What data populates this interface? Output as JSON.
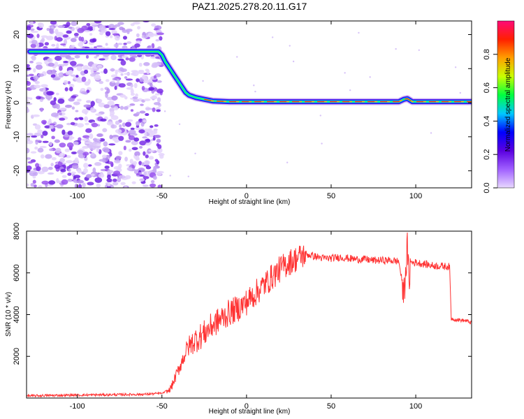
{
  "title": "PAZ1.2025.278.20.11.G17",
  "colors": {
    "signal": "#ff3333",
    "speckle": "#9a55ee",
    "axis": "#000000"
  },
  "chart_data": [
    {
      "type": "heatmap",
      "title": "PAZ1.2025.278.20.11.G17",
      "xlabel": "Height of straight line (km)",
      "ylabel": "Frequency (Hz)",
      "xlim": [
        -130,
        133
      ],
      "ylim": [
        -25,
        24
      ],
      "x_ticks": [
        -100,
        -50,
        0,
        50,
        100
      ],
      "y_ticks": [
        -20,
        -10,
        0,
        10,
        20
      ],
      "ridge_line": {
        "x": [
          -128,
          -120,
          -110,
          -100,
          -90,
          -80,
          -70,
          -60,
          -52,
          -50,
          -48,
          -46,
          -44,
          -42,
          -40,
          -38,
          -36,
          -34,
          -30,
          -25,
          -20,
          -10,
          0,
          20,
          40,
          60,
          80,
          90,
          93,
          95,
          98,
          110,
          133
        ],
        "y": [
          15,
          15,
          15,
          15,
          15,
          15,
          15,
          15,
          15,
          14,
          12,
          10.5,
          9,
          7.5,
          6,
          4.5,
          3,
          2.2,
          1.5,
          1.0,
          0.5,
          0.3,
          0.3,
          0.3,
          0.3,
          0.3,
          0.3,
          0.3,
          1.0,
          1.2,
          0.3,
          0.3,
          0.3
        ]
      },
      "colorbar": {
        "label": "Normalized spectral amplitude",
        "ticks": [
          "0.0",
          "0.2",
          "0.4",
          "0.6",
          "0.8"
        ],
        "tick_values": [
          0.0,
          0.2,
          0.4,
          0.6,
          0.8
        ],
        "range": [
          0,
          1
        ],
        "colormap": [
          "#e8d8ff",
          "#a060ff",
          "#5a00e0",
          "#0000ff",
          "#00c8ff",
          "#00ff40",
          "#c8ff00",
          "#ffa000",
          "#ff2000",
          "#ff0a78"
        ]
      },
      "grid": false
    },
    {
      "type": "line",
      "xlabel": "Height of straight line (km)",
      "ylabel": "SNR (10 * v/v)",
      "xlim": [
        -130,
        133
      ],
      "ylim": [
        0,
        8000
      ],
      "x_ticks": [
        -100,
        -50,
        0,
        50,
        100
      ],
      "y_ticks": [
        2000,
        4000,
        6000,
        8000
      ],
      "series": [
        {
          "x": [
            -130,
            -120,
            -110,
            -100,
            -90,
            -80,
            -70,
            -60,
            -50,
            -46,
            -44,
            -42,
            -40,
            -38,
            -36,
            -34,
            -30,
            -25,
            -20,
            -15,
            -10,
            -5,
            0,
            5,
            10,
            15,
            20,
            25,
            30,
            35,
            40,
            45,
            50,
            55,
            60,
            65,
            70,
            75,
            80,
            85,
            90,
            93,
            95,
            96,
            97,
            100,
            110,
            120,
            121,
            125,
            130,
            133
          ],
          "y": [
            100,
            120,
            130,
            140,
            150,
            160,
            170,
            180,
            230,
            350,
            600,
            1000,
            1400,
            1800,
            2200,
            2500,
            2800,
            3100,
            3500,
            3800,
            4100,
            4300,
            4600,
            5000,
            5400,
            5800,
            6200,
            6500,
            6700,
            6900,
            6800,
            6700,
            6700,
            6750,
            6700,
            6650,
            6650,
            6600,
            6600,
            6600,
            6550,
            5000,
            7200,
            5600,
            6500,
            6500,
            6350,
            6300,
            3800,
            3750,
            3700,
            3600
          ]
        }
      ],
      "grid": false
    }
  ]
}
